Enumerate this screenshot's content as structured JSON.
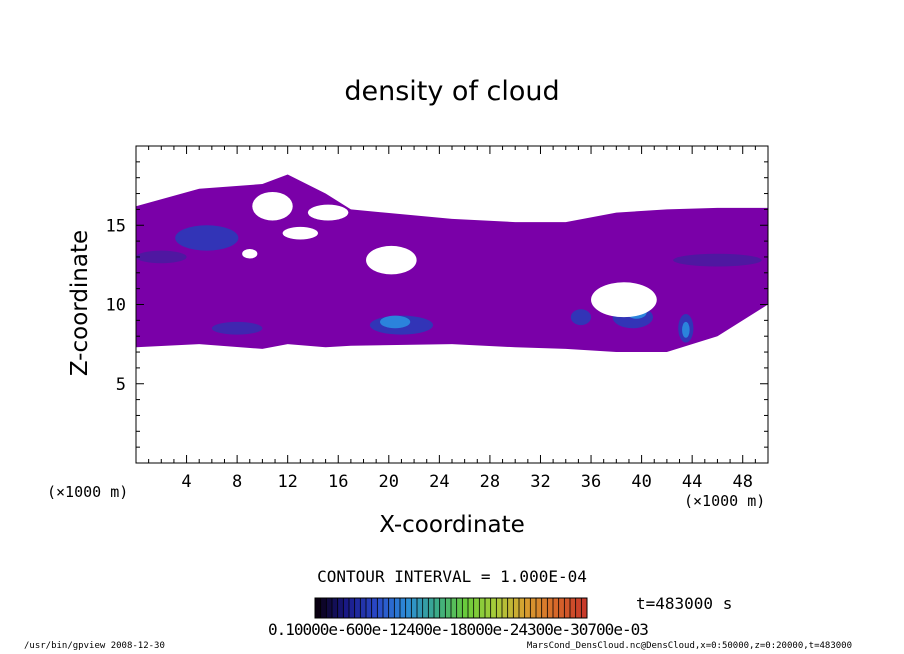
{
  "chart_data": {
    "type": "heatmap",
    "title": "density of cloud",
    "xlabel": "X-coordinate",
    "ylabel": "Z-coordinate",
    "x_unit": "(×1000 m)",
    "y_unit": "(×1000 m)",
    "xlim": [
      0,
      50
    ],
    "ylim": [
      0,
      20
    ],
    "xticks": [
      4,
      8,
      12,
      16,
      20,
      24,
      28,
      32,
      36,
      40,
      44,
      48
    ],
    "yticks": [
      5,
      10,
      15
    ],
    "contour_interval": "CONTOUR INTERVAL = 1.000E-04",
    "time_label": "t=483000 s",
    "colorbar_labels": "0.10000e-600e-12400e-18000e-24300e-30700e-03",
    "colorbar_colors": [
      "#0a0012",
      "#1a1a8a",
      "#2a4ac8",
      "#2c8cd8",
      "#3aaa8a",
      "#6acc3a",
      "#a8cc3a",
      "#d8a030",
      "#d86a2a",
      "#c83a2a"
    ],
    "cloud_color": "#7a00a8",
    "cloud_band": [
      {
        "x": 0,
        "bottom": 7.3,
        "top": 16.2
      },
      {
        "x": 5,
        "bottom": 7.5,
        "top": 17.3
      },
      {
        "x": 10,
        "bottom": 7.2,
        "top": 17.6
      },
      {
        "x": 12,
        "bottom": 7.5,
        "top": 18.2
      },
      {
        "x": 15,
        "bottom": 7.3,
        "top": 17.0
      },
      {
        "x": 17,
        "bottom": 7.4,
        "top": 16.0
      },
      {
        "x": 25,
        "bottom": 7.5,
        "top": 15.4
      },
      {
        "x": 30,
        "bottom": 7.3,
        "top": 15.2
      },
      {
        "x": 34,
        "bottom": 7.2,
        "top": 15.2
      },
      {
        "x": 38,
        "bottom": 7.0,
        "top": 15.8
      },
      {
        "x": 42,
        "bottom": 7.0,
        "top": 16.0
      },
      {
        "x": 46,
        "bottom": 8.0,
        "top": 16.1
      },
      {
        "x": 50,
        "bottom": 10.0,
        "top": 16.1
      }
    ],
    "gaps": [
      {
        "x": 10.8,
        "y": 16.2,
        "rx": 1.6,
        "ry": 0.9
      },
      {
        "x": 15.2,
        "y": 15.8,
        "rx": 1.6,
        "ry": 0.5
      },
      {
        "x": 20.2,
        "y": 12.8,
        "rx": 2.0,
        "ry": 0.9
      },
      {
        "x": 13.0,
        "y": 14.5,
        "rx": 1.4,
        "ry": 0.4
      },
      {
        "x": 38.6,
        "y": 10.3,
        "rx": 2.6,
        "ry": 1.1
      },
      {
        "x": 9.0,
        "y": 13.2,
        "rx": 0.6,
        "ry": 0.3
      }
    ],
    "blue_patches": [
      {
        "x": 21.0,
        "y": 8.7,
        "rx": 2.5,
        "ry": 0.6,
        "c": "#2a3ab8"
      },
      {
        "x": 20.5,
        "y": 8.9,
        "rx": 1.2,
        "ry": 0.4,
        "c": "#2a8ce0"
      },
      {
        "x": 39.3,
        "y": 9.2,
        "rx": 1.6,
        "ry": 0.7,
        "c": "#2a3ab8"
      },
      {
        "x": 39.6,
        "y": 9.5,
        "rx": 0.8,
        "ry": 0.4,
        "c": "#2a8ce0"
      },
      {
        "x": 43.5,
        "y": 8.5,
        "rx": 0.6,
        "ry": 0.9,
        "c": "#2a3ab8"
      },
      {
        "x": 43.5,
        "y": 8.4,
        "rx": 0.3,
        "ry": 0.5,
        "c": "#2a8ce0"
      },
      {
        "x": 5.6,
        "y": 14.2,
        "rx": 2.5,
        "ry": 0.8,
        "c": "#2a3ab8"
      },
      {
        "x": 35.2,
        "y": 9.2,
        "rx": 0.8,
        "ry": 0.5,
        "c": "#2a3ab8"
      },
      {
        "x": 8.0,
        "y": 8.5,
        "rx": 2.0,
        "ry": 0.4,
        "c": "#3a2ab0"
      },
      {
        "x": 46.0,
        "y": 12.8,
        "rx": 3.5,
        "ry": 0.4,
        "c": "#4a1aa0"
      },
      {
        "x": 2.0,
        "y": 13.0,
        "rx": 2.0,
        "ry": 0.4,
        "c": "#4a1aa0"
      }
    ]
  },
  "footer_left": "/usr/bin/gpview   2008-12-30",
  "footer_right": "MarsCond_DensCloud.nc@DensCloud,x=0:50000,z=0:20000,t=483000"
}
